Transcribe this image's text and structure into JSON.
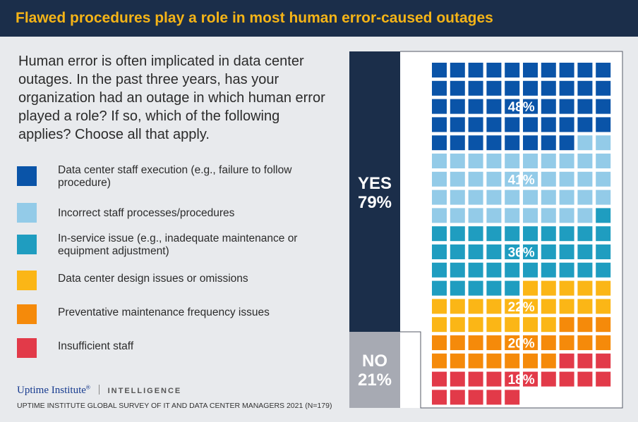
{
  "header": {
    "title": "Flawed procedures play a role in most human error-caused outages"
  },
  "question": "Human error is often implicated in data center outages. In the past three years, has your organization had an outage in which human error played a role? If so, which of the following applies? Choose all that apply.",
  "legend": [
    {
      "label": "Data center staff execution (e.g., failure to follow procedure)",
      "color": "#0a54a8"
    },
    {
      "label": "Incorrect staff processes/procedures",
      "color": "#93cbe8"
    },
    {
      "label": "In-service issue (e.g., inadequate maintenance or equipment adjustment)",
      "color": "#1f9dc0"
    },
    {
      "label": "Data center design issues or omissions",
      "color": "#fbb616"
    },
    {
      "label": "Preventative maintenance frequency issues",
      "color": "#f58a0a"
    },
    {
      "label": "Insufficient staff",
      "color": "#e23a49"
    }
  ],
  "yes": {
    "label": "YES",
    "value": "79%"
  },
  "no": {
    "label": "NO",
    "value": "21%"
  },
  "logo": {
    "brand": "Uptime Institute",
    "trademark": "®",
    "division": "INTELLIGENCE"
  },
  "source": "UPTIME INSTITUTE GLOBAL SURVEY OF IT AND DATA CENTER MANAGERS 2021 (N=179)",
  "chart_data": {
    "type": "waffle",
    "units_per_row": 10,
    "series": [
      {
        "name": "Data center staff execution (e.g., failure to follow procedure)",
        "value": 48,
        "label": "48%",
        "color": "#0a54a8"
      },
      {
        "name": "Incorrect staff processes/procedures",
        "value": 41,
        "label": "41%",
        "color": "#93cbe8"
      },
      {
        "name": "In-service issue (e.g., inadequate maintenance or equipment adjustment)",
        "value": 36,
        "label": "36%",
        "color": "#1f9dc0"
      },
      {
        "name": "Data center design issues or omissions",
        "value": 22,
        "label": "22%",
        "color": "#fbb616"
      },
      {
        "name": "Preventative maintenance frequency issues",
        "value": 20,
        "label": "20%",
        "color": "#f58a0a"
      },
      {
        "name": "Insufficient staff",
        "value": 18,
        "label": "18%",
        "color": "#e23a49"
      }
    ],
    "split": [
      {
        "name": "YES",
        "value": 79
      },
      {
        "name": "NO",
        "value": 21
      }
    ]
  }
}
